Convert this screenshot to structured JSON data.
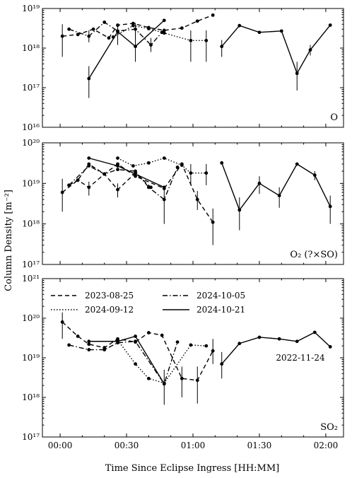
{
  "figure": {
    "ylabel": "Column Density [m⁻²]",
    "xlabel": "Time Since Eclipse Ingress [HH:MM]"
  },
  "chart_data": {
    "type": "line",
    "x_unit": "minutes since eclipse ingress",
    "xlim": [
      -8,
      128
    ],
    "x_ticks": [
      {
        "value": 0,
        "label": "00:00"
      },
      {
        "value": 30,
        "label": "00:30"
      },
      {
        "value": 60,
        "label": "01:00"
      },
      {
        "value": 90,
        "label": "01:30"
      },
      {
        "value": 120,
        "label": "02:00"
      }
    ],
    "legend": {
      "placement": "upper-left of bottom panel",
      "entries": [
        {
          "label": "2023-08-25",
          "style": "dashed"
        },
        {
          "label": "2024-10-05",
          "style": "dashdot"
        },
        {
          "label": "2024-09-12",
          "style": "dotted"
        },
        {
          "label": "2024-10-21",
          "style": "solid"
        }
      ]
    },
    "panels": [
      {
        "label": "O",
        "yscale": "log",
        "ylim_exp": [
          16,
          19
        ],
        "y_ticks": [
          "10¹⁶",
          "10¹⁷",
          "10¹⁸",
          "10¹⁹"
        ],
        "series": [
          {
            "style": "dashed",
            "points": [
              {
                "x": 1,
                "y": 2e+18,
                "lo": 6e+17,
                "hi": 4e+18
              },
              {
                "x": 8,
                "y": 2.2e+18
              },
              {
                "x": 15,
                "y": 3e+18
              },
              {
                "x": 22,
                "y": 1.8e+18
              },
              {
                "x": 26,
                "y": 3.8e+18
              },
              {
                "x": 33,
                "y": 4.2e+18
              },
              {
                "x": 40,
                "y": 3.3e+18
              },
              {
                "x": 47,
                "y": 2.8e+18
              },
              {
                "x": 55,
                "y": 3.2e+18
              },
              {
                "x": 62,
                "y": 4.8e+18
              },
              {
                "x": 69,
                "y": 6.8e+18
              }
            ]
          },
          {
            "style": "dashdot",
            "points": [
              {
                "x": 4,
                "y": 3e+18
              },
              {
                "x": 13,
                "y": 2e+18,
                "lo": 1.4e+18,
                "hi": 2.8e+18
              },
              {
                "x": 20,
                "y": 4.5e+18
              },
              {
                "x": 26,
                "y": 2.7e+18,
                "lo": 1.2e+18,
                "hi": 3.8e+18
              },
              {
                "x": 34,
                "y": 3e+18,
                "lo": 1.6e+18,
                "hi": 4.3e+18
              },
              {
                "x": 41,
                "y": 1.2e+18,
                "lo": 8e+17,
                "hi": 1.8e+18
              },
              {
                "x": 46,
                "y": 2.5e+18
              }
            ]
          },
          {
            "style": "dotted",
            "points": [
              {
                "x": 24,
                "y": 1.9e+18
              },
              {
                "x": 33,
                "y": 3.7e+18
              },
              {
                "x": 40,
                "y": 3.1e+18
              },
              {
                "x": 47,
                "y": 2.4e+18
              },
              {
                "x": 59,
                "y": 1.55e+18,
                "lo": 4.5e+17,
                "hi": 2.8e+18
              },
              {
                "x": 66,
                "y": 1.55e+18,
                "lo": 4.5e+17,
                "hi": 2.8e+18
              }
            ]
          },
          {
            "style": "solid",
            "points": [
              {
                "x": 13,
                "y": 1.7e+17,
                "lo": 5.5e+16,
                "hi": 3.5e+17
              },
              {
                "x": 26,
                "y": 2.6e+18,
                "lo": 1.4e+18,
                "hi": 3.8e+18
              },
              {
                "x": 34,
                "y": 1.1e+18,
                "lo": 4.5e+17,
                "hi": 2.6e+18
              },
              {
                "x": 47,
                "y": 5e+18
              }
            ]
          },
          {
            "style": "solid",
            "points": [
              {
                "x": 73,
                "y": 1.1e+18,
                "lo": 6e+17,
                "hi": 1.6e+18
              },
              {
                "x": 81,
                "y": 3.7e+18
              },
              {
                "x": 90,
                "y": 2.5e+18
              },
              {
                "x": 100,
                "y": 2.7e+18
              },
              {
                "x": 107,
                "y": 2.3e+17,
                "lo": 8.5e+16,
                "hi": 4.5e+17
              },
              {
                "x": 113,
                "y": 9e+17,
                "lo": 6.5e+17,
                "hi": 1.2e+18
              },
              {
                "x": 122,
                "y": 3.8e+18
              }
            ]
          }
        ]
      },
      {
        "label": "O₂ (?×SO)",
        "yscale": "log",
        "ylim_exp": [
          17,
          20
        ],
        "y_ticks": [
          "10¹⁷",
          "10¹⁸",
          "10¹⁹",
          "10²⁰"
        ],
        "series": [
          {
            "style": "dashed",
            "points": [
              {
                "x": 1,
                "y": 6e+18,
                "lo": 2e+18,
                "hi": 1.3e+19
              },
              {
                "x": 8,
                "y": 1.2e+19
              },
              {
                "x": 13,
                "y": 3e+19
              },
              {
                "x": 20,
                "y": 1.7e+19
              },
              {
                "x": 26,
                "y": 3e+19
              },
              {
                "x": 34,
                "y": 1.5e+19
              },
              {
                "x": 47,
                "y": 7.5e+18
              },
              {
                "x": 55,
                "y": 3e+19
              },
              {
                "x": 62,
                "y": 4e+18,
                "lo": 2.2e+18,
                "hi": 6.5e+18
              },
              {
                "x": 69,
                "y": 1.1e+18,
                "lo": 3e+17,
                "hi": 2.4e+18
              }
            ]
          },
          {
            "style": "dashdot",
            "points": [
              {
                "x": 4,
                "y": 9e+18
              },
              {
                "x": 13,
                "y": 2.7e+19
              },
              {
                "x": 20,
                "y": 1.7e+19
              },
              {
                "x": 26,
                "y": 2.2e+19
              },
              {
                "x": 34,
                "y": 2e+19
              },
              {
                "x": 40,
                "y": 8e+18
              },
              {
                "x": 47,
                "y": 4e+18,
                "lo": 1e+18,
                "hi": 8e+18
              },
              {
                "x": 53,
                "y": 2.5e+19
              }
            ]
          },
          {
            "style": "dotted",
            "points": [
              {
                "x": 26,
                "y": 4.2e+19
              },
              {
                "x": 33,
                "y": 2.7e+19
              },
              {
                "x": 40,
                "y": 3.2e+19
              },
              {
                "x": 47,
                "y": 4.2e+19
              },
              {
                "x": 55,
                "y": 2.8e+19
              },
              {
                "x": 59,
                "y": 1.8e+19,
                "lo": 9e+18,
                "hi": 3e+19
              },
              {
                "x": 66,
                "y": 1.8e+19,
                "lo": 9e+18,
                "hi": 3e+19
              }
            ]
          },
          {
            "style": "dashed",
            "points": [
              {
                "x": 4,
                "y": 9e+18
              },
              {
                "x": 8,
                "y": 1.2e+19
              },
              {
                "x": 13,
                "y": 8e+18,
                "lo": 5e+18,
                "hi": 1.1e+19
              },
              {
                "x": 20,
                "y": 1.7e+19
              },
              {
                "x": 26,
                "y": 7e+18,
                "lo": 4.5e+18,
                "hi": 1e+19
              },
              {
                "x": 34,
                "y": 1.8e+19
              },
              {
                "x": 41,
                "y": 8e+18
              }
            ]
          },
          {
            "style": "solid",
            "points": [
              {
                "x": 13,
                "y": 4.2e+19
              },
              {
                "x": 26,
                "y": 2.7e+19
              },
              {
                "x": 47,
                "y": 8e+18
              }
            ]
          },
          {
            "style": "solid",
            "points": [
              {
                "x": 73,
                "y": 3.2e+19
              },
              {
                "x": 81,
                "y": 2.2e+18,
                "lo": 7e+17,
                "hi": 4.5e+18
              },
              {
                "x": 90,
                "y": 1e+19,
                "lo": 5.5e+18,
                "hi": 1.5e+19
              },
              {
                "x": 99,
                "y": 5e+18,
                "lo": 2.5e+18,
                "hi": 8e+18
              },
              {
                "x": 107,
                "y": 3e+19
              },
              {
                "x": 115,
                "y": 1.6e+19,
                "lo": 1.2e+19,
                "hi": 2e+19
              },
              {
                "x": 122,
                "y": 2.7e+18,
                "lo": 1e+18,
                "hi": 5e+18
              }
            ]
          }
        ]
      },
      {
        "label": "SO₂",
        "yscale": "log",
        "ylim_exp": [
          17,
          21
        ],
        "y_ticks": [
          "10¹⁷",
          "10¹⁸",
          "10¹⁹",
          "10²⁰",
          "10²¹"
        ],
        "annotation": "2022-11-24",
        "series": [
          {
            "style": "dashed",
            "points": [
              {
                "x": 1,
                "y": 8e+19,
                "lo": 3e+19,
                "hi": 1.4e+20
              },
              {
                "x": 8,
                "y": 3.5e+19
              },
              {
                "x": 13,
                "y": 2.2e+19
              },
              {
                "x": 20,
                "y": 1.8e+19
              },
              {
                "x": 26,
                "y": 3e+19
              },
              {
                "x": 34,
                "y": 2.5e+19
              },
              {
                "x": 40,
                "y": 4.3e+19
              },
              {
                "x": 46,
                "y": 3.7e+19
              },
              {
                "x": 55,
                "y": 3e+18,
                "lo": 1e+18,
                "hi": 6e+18
              },
              {
                "x": 62,
                "y": 2.7e+18,
                "lo": 7e+17,
                "hi": 6e+18
              },
              {
                "x": 69,
                "y": 1.5e+19,
                "lo": 7e+18,
                "hi": 3e+19
              }
            ]
          },
          {
            "style": "dashdot",
            "points": [
              {
                "x": 4,
                "y": 2.1e+19
              },
              {
                "x": 13,
                "y": 1.6e+19
              },
              {
                "x": 20,
                "y": 1.6e+19
              },
              {
                "x": 26,
                "y": 2.4e+19
              },
              {
                "x": 34,
                "y": 2.6e+19
              },
              {
                "x": 47,
                "y": 2.2e+18
              },
              {
                "x": 53,
                "y": 2.5e+19
              }
            ]
          },
          {
            "style": "dotted",
            "points": [
              {
                "x": 26,
                "y": 2.8e+19
              },
              {
                "x": 34,
                "y": 7e+18
              },
              {
                "x": 40,
                "y": 3e+18
              },
              {
                "x": 47,
                "y": 2.3e+18
              },
              {
                "x": 59,
                "y": 2.1e+19
              },
              {
                "x": 66,
                "y": 2e+19
              }
            ]
          },
          {
            "style": "solid",
            "points": [
              {
                "x": 13,
                "y": 2.6e+19
              },
              {
                "x": 26,
                "y": 2.6e+19
              },
              {
                "x": 34,
                "y": 3.5e+19
              },
              {
                "x": 47,
                "y": 2.2e+18,
                "lo": 6.5e+17,
                "hi": 5e+18
              }
            ]
          },
          {
            "style": "solid",
            "points": [
              {
                "x": 73,
                "y": 7e+18,
                "lo": 3e+18,
                "hi": 1.4e+19
              },
              {
                "x": 81,
                "y": 2.3e+19
              },
              {
                "x": 90,
                "y": 3.3e+19
              },
              {
                "x": 99,
                "y": 3e+19
              },
              {
                "x": 107,
                "y": 2.6e+19
              },
              {
                "x": 115,
                "y": 4.4e+19
              },
              {
                "x": 122,
                "y": 1.9e+19
              }
            ]
          }
        ]
      }
    ]
  }
}
